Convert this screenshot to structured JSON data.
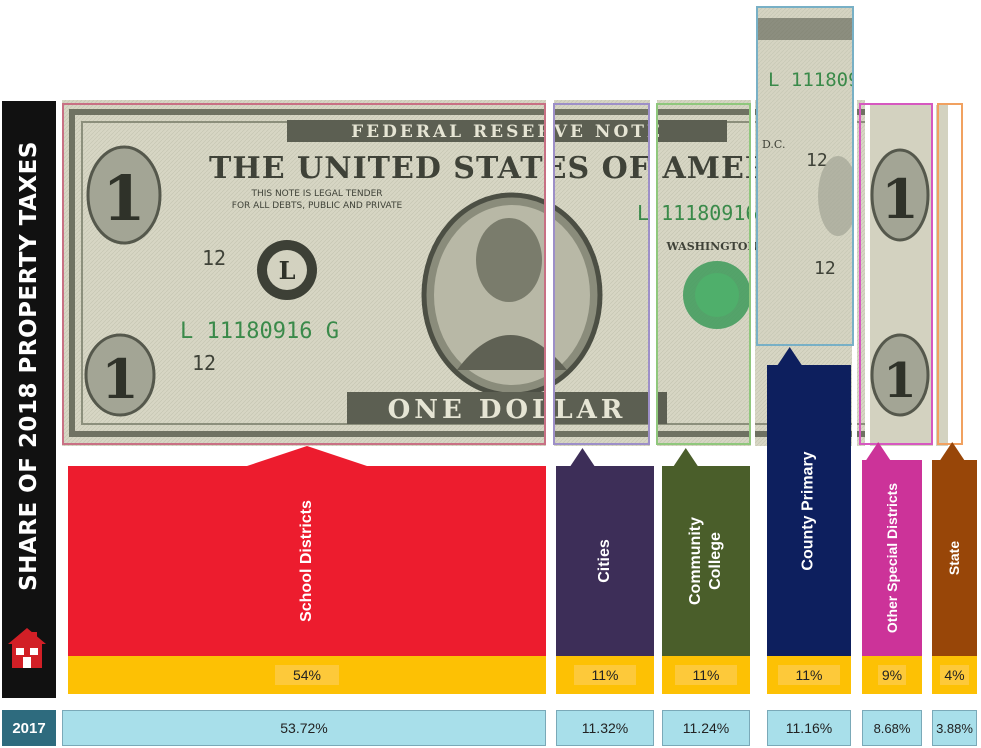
{
  "title": "SHARE OF 2018 PROPERTY TAXES",
  "year_label": "2017",
  "bill": {
    "banner": "FEDERAL RESERVE NOTE",
    "heading": "THE UNITED STATES OF AMERICA",
    "legal_line1": "THIS NOTE IS LEGAL TENDER",
    "legal_line2": "FOR ALL DEBTS, PUBLIC AND PRIVATE",
    "serial": "L 11180916 G",
    "seal_letter": "L",
    "plate_number": "12",
    "left_digit": "1",
    "denomination_text": "ONE DOLLAR",
    "city": "WASHINGTON",
    "city_abbrev": "D.C."
  },
  "chart_data": {
    "type": "bar",
    "title": "SHARE OF 2018 PROPERTY TAXES",
    "categories": [
      "School Districts",
      "Cities",
      "Community College",
      "County Primary",
      "Other Special Districts",
      "State"
    ],
    "series": [
      {
        "name": "2018",
        "values": [
          54,
          11,
          11,
          11,
          9,
          4
        ],
        "labels": [
          "54%",
          "11%",
          "11%",
          "11%",
          "9%",
          "4%"
        ]
      },
      {
        "name": "2017",
        "values": [
          53.72,
          11.32,
          11.24,
          11.16,
          8.68,
          3.88
        ],
        "labels": [
          "53.72%",
          "11.32%",
          "11.24%",
          "11.16%",
          "8.68%",
          "3.88%"
        ]
      }
    ],
    "colors": [
      "#ed1c2e",
      "#3d2e58",
      "#4a5e2a",
      "#0d1f5e",
      "#cc3399",
      "#984608"
    ],
    "frame_colors": [
      "#c87084",
      "#9d8fc8",
      "#8fc77c",
      "#78b0c6",
      "#d658c0",
      "#f1a160"
    ]
  }
}
